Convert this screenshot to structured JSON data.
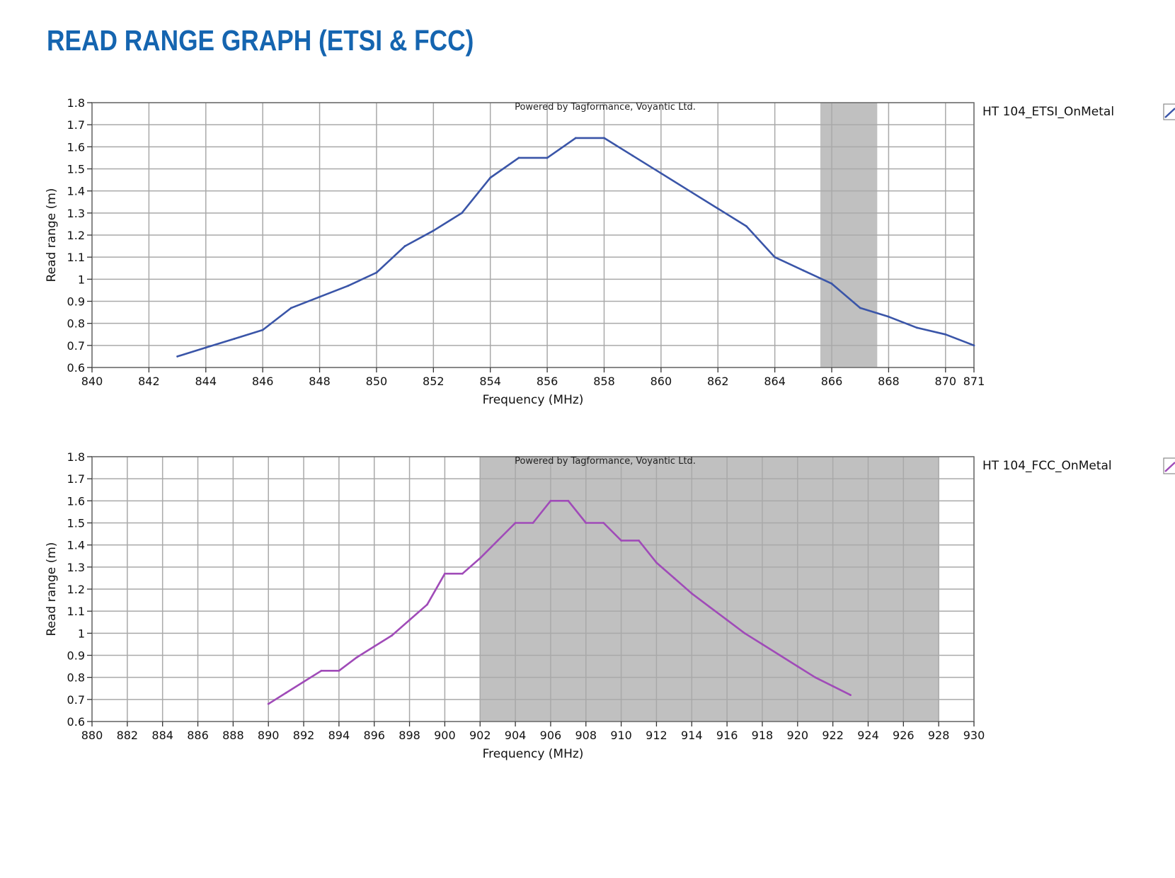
{
  "title": "READ RANGE GRAPH (ETSI & FCC)",
  "colors": {
    "title": "#1565b0",
    "etsi_line": "#3a55a8",
    "fcc_line": "#a04bb8",
    "band": "#c0c0c0",
    "grid": "#a9a9a9"
  },
  "chart_data": [
    {
      "type": "line",
      "watermark": "Powered by Tagformance, Voyantic Ltd.",
      "xlabel": "Frequency (MHz)",
      "ylabel": "Read range (m)",
      "xlim": [
        840,
        871
      ],
      "ylim": [
        0.6,
        1.8
      ],
      "x_ticks": [
        840,
        842,
        844,
        846,
        848,
        850,
        852,
        854,
        856,
        858,
        860,
        862,
        864,
        866,
        868,
        870,
        871
      ],
      "x_grid": [
        840,
        842,
        844,
        846,
        848,
        850,
        852,
        854,
        856,
        858,
        860,
        862,
        864,
        866,
        868,
        870,
        871
      ],
      "y_ticks": [
        0.6,
        0.7,
        0.8,
        0.9,
        1.0,
        1.1,
        1.2,
        1.3,
        1.4,
        1.5,
        1.6,
        1.7,
        1.8
      ],
      "y_tick_labels": [
        "0.6",
        "0.7",
        "0.8",
        "0.9",
        "1",
        "1.1",
        "1.2",
        "1.3",
        "1.4",
        "1.5",
        "1.6",
        "1.7",
        "1.8"
      ],
      "shaded_band": [
        865.6,
        867.6
      ],
      "grid": true,
      "legend_position": "right",
      "series": [
        {
          "name": "HT 104_ETSI_OnMetal",
          "color": "#3a55a8",
          "x": [
            843,
            844,
            845,
            846,
            847,
            848,
            849,
            850,
            851,
            852,
            853,
            854,
            855,
            856,
            857,
            858,
            859,
            860,
            861,
            862,
            863,
            864,
            865,
            866,
            867,
            868,
            869,
            870,
            871
          ],
          "y": [
            0.65,
            0.69,
            0.73,
            0.77,
            0.87,
            0.92,
            0.97,
            1.03,
            1.15,
            1.22,
            1.3,
            1.46,
            1.55,
            1.55,
            1.64,
            1.64,
            1.56,
            1.48,
            1.4,
            1.32,
            1.24,
            1.1,
            1.04,
            0.98,
            0.87,
            0.83,
            0.78,
            0.75,
            0.7
          ]
        }
      ]
    },
    {
      "type": "line",
      "watermark": "Powered by Tagformance, Voyantic Ltd.",
      "xlabel": "Frequency (MHz)",
      "ylabel": "Read range (m)",
      "xlim": [
        880,
        930
      ],
      "ylim": [
        0.6,
        1.8
      ],
      "x_ticks": [
        880,
        882,
        884,
        886,
        888,
        890,
        892,
        894,
        896,
        898,
        900,
        902,
        904,
        906,
        908,
        910,
        912,
        914,
        916,
        918,
        920,
        922,
        924,
        926,
        928,
        930
      ],
      "x_grid": [
        880,
        882,
        884,
        886,
        888,
        890,
        892,
        894,
        896,
        898,
        900,
        902,
        904,
        906,
        908,
        910,
        912,
        914,
        916,
        918,
        920,
        922,
        924,
        926,
        928,
        930
      ],
      "y_ticks": [
        0.6,
        0.7,
        0.8,
        0.9,
        1.0,
        1.1,
        1.2,
        1.3,
        1.4,
        1.5,
        1.6,
        1.7,
        1.8
      ],
      "y_tick_labels": [
        "0.6",
        "0.7",
        "0.8",
        "0.9",
        "1",
        "1.1",
        "1.2",
        "1.3",
        "1.4",
        "1.5",
        "1.6",
        "1.7",
        "1.8"
      ],
      "shaded_band": [
        902,
        928
      ],
      "grid": true,
      "legend_position": "right",
      "series": [
        {
          "name": "HT 104_FCC_OnMetal",
          "color": "#a04bb8",
          "x": [
            890,
            891,
            892,
            893,
            894,
            895,
            896,
            897,
            898,
            899,
            900,
            901,
            902,
            903,
            904,
            905,
            906,
            907,
            908,
            909,
            910,
            911,
            912,
            913,
            914,
            915,
            916,
            917,
            918,
            919,
            920,
            921,
            922,
            923
          ],
          "y": [
            0.68,
            0.73,
            0.78,
            0.83,
            0.83,
            0.89,
            0.94,
            0.99,
            1.06,
            1.13,
            1.27,
            1.27,
            1.34,
            1.42,
            1.5,
            1.5,
            1.6,
            1.6,
            1.5,
            1.5,
            1.42,
            1.42,
            1.32,
            1.25,
            1.18,
            1.12,
            1.06,
            1.0,
            0.95,
            0.9,
            0.85,
            0.8,
            0.76,
            0.72
          ]
        }
      ]
    }
  ]
}
